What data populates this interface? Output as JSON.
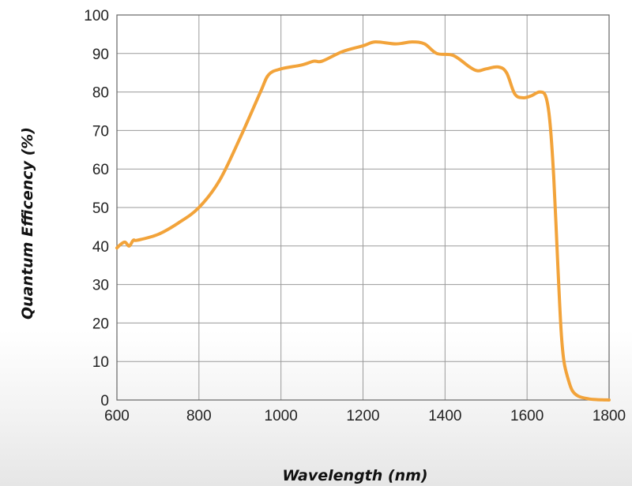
{
  "chart_data": {
    "type": "line",
    "title": "",
    "xlabel": "Wavelength (nm)",
    "ylabel": "Quantum Efficency (%)",
    "xlim": [
      600,
      1800
    ],
    "ylim": [
      0,
      100
    ],
    "x_ticks": [
      "600",
      "800",
      "1000",
      "1200",
      "1400",
      "1600",
      "1800"
    ],
    "y_ticks": [
      "0",
      "10",
      "20",
      "30",
      "40",
      "50",
      "60",
      "70",
      "80",
      "90",
      "100"
    ],
    "grid": true,
    "legend": "none",
    "series": [
      {
        "color": "#f2a33a",
        "x": [
          600,
          610,
          620,
          630,
          640,
          650,
          700,
          750,
          800,
          850,
          900,
          950,
          970,
          1000,
          1050,
          1080,
          1100,
          1150,
          1200,
          1230,
          1280,
          1320,
          1350,
          1380,
          1420,
          1460,
          1480,
          1500,
          1530,
          1550,
          1570,
          1590,
          1610,
          1630,
          1645,
          1655,
          1665,
          1675,
          1683,
          1690,
          1700,
          1710,
          1725,
          1750,
          1770,
          1800
        ],
        "y": [
          39.5,
          40.5,
          41,
          40,
          41.5,
          41.5,
          43,
          46,
          50,
          57,
          68,
          80,
          84.5,
          86,
          87,
          88,
          88,
          90.5,
          92,
          93,
          92.5,
          93,
          92.5,
          90,
          89.5,
          86.5,
          85.5,
          86,
          86.5,
          85,
          79.5,
          78.5,
          79,
          80,
          79,
          73,
          58,
          35,
          18,
          10,
          5.5,
          2.5,
          1,
          0.3,
          0.1,
          0
        ]
      }
    ]
  }
}
